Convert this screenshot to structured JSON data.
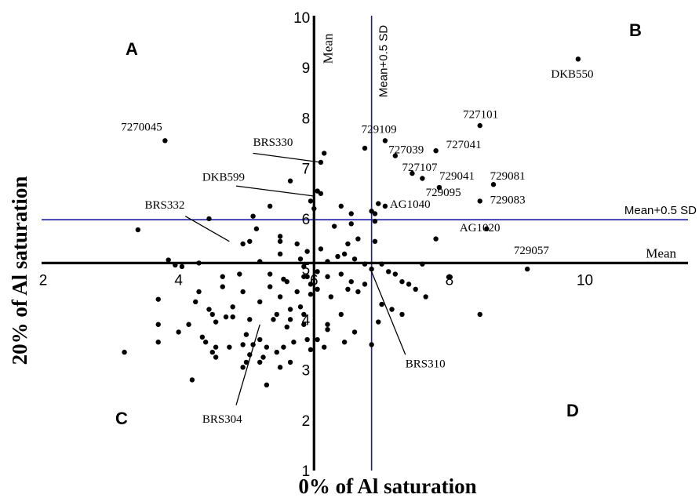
{
  "chart_data": {
    "type": "scatter",
    "xlabel": "0% of Al saturation",
    "ylabel": "20% of Al saturation",
    "xlim": [
      2,
      11.5
    ],
    "ylim": [
      1,
      10
    ],
    "x_ticks": [
      "2",
      "4",
      "6",
      "8",
      "10"
    ],
    "y_ticks": [
      "1",
      "2",
      "3",
      "4",
      "5",
      "6",
      "7",
      "8",
      "9",
      "10"
    ],
    "grid": false,
    "colors": {
      "points": "#000000",
      "sd_lines": "#1a1aa6",
      "mean_lines": "#000000"
    },
    "reference_lines": {
      "mean_x": {
        "value": 6.0,
        "label": "Mean"
      },
      "mean_y": {
        "value": 5.12,
        "label": "Mean"
      },
      "sd_x": {
        "value": 6.85,
        "label": "Mean+0.5 SD"
      },
      "sd_y": {
        "value": 5.98,
        "label": "Mean+0.5 SD"
      }
    },
    "quadrants": [
      "A",
      "B",
      "C",
      "D"
    ],
    "points": [
      [
        9.9,
        9.17
      ],
      [
        3.8,
        7.55
      ],
      [
        8.45,
        7.85
      ],
      [
        6.75,
        7.4
      ],
      [
        7.05,
        7.55
      ],
      [
        7.8,
        7.35
      ],
      [
        7.2,
        7.25
      ],
      [
        6.15,
        7.3
      ],
      [
        6.1,
        7.12
      ],
      [
        5.65,
        6.75
      ],
      [
        7.45,
        6.9
      ],
      [
        7.6,
        6.8
      ],
      [
        7.85,
        6.62
      ],
      [
        8.65,
        6.68
      ],
      [
        8.45,
        6.35
      ],
      [
        6.05,
        6.55
      ],
      [
        6.1,
        6.5
      ],
      [
        5.95,
        6.35
      ],
      [
        6.0,
        6.2
      ],
      [
        7.05,
        6.25
      ],
      [
        6.95,
        6.3
      ],
      [
        6.9,
        6.1
      ],
      [
        6.85,
        6.15
      ],
      [
        5.1,
        6.05
      ],
      [
        5.35,
        6.25
      ],
      [
        4.45,
        6.0
      ],
      [
        3.4,
        5.78
      ],
      [
        5.05,
        5.55
      ],
      [
        4.95,
        5.5
      ],
      [
        5.15,
        5.8
      ],
      [
        5.5,
        5.65
      ],
      [
        5.5,
        5.55
      ],
      [
        5.75,
        5.5
      ],
      [
        6.3,
        5.85
      ],
      [
        6.4,
        6.25
      ],
      [
        6.55,
        6.1
      ],
      [
        6.55,
        5.9
      ],
      [
        6.65,
        5.6
      ],
      [
        6.5,
        5.5
      ],
      [
        6.9,
        5.55
      ],
      [
        6.9,
        5.95
      ],
      [
        7.8,
        5.6
      ],
      [
        8.55,
        5.8
      ],
      [
        9.15,
        5.0
      ],
      [
        3.85,
        5.18
      ],
      [
        3.95,
        5.08
      ],
      [
        4.05,
        5.05
      ],
      [
        4.3,
        5.12
      ],
      [
        5.2,
        5.15
      ],
      [
        5.5,
        5.3
      ],
      [
        5.8,
        5.2
      ],
      [
        5.9,
        5.35
      ],
      [
        6.1,
        5.4
      ],
      [
        6.2,
        5.15
      ],
      [
        6.35,
        5.25
      ],
      [
        6.45,
        5.3
      ],
      [
        6.6,
        5.2
      ],
      [
        6.75,
        5.1
      ],
      [
        6.85,
        5.0
      ],
      [
        7.0,
        5.1
      ],
      [
        7.6,
        5.1
      ],
      [
        8.0,
        4.85
      ],
      [
        5.85,
        5.05
      ],
      [
        5.9,
        4.85
      ],
      [
        6.05,
        4.95
      ],
      [
        6.2,
        4.85
      ],
      [
        6.4,
        4.9
      ],
      [
        6.55,
        4.75
      ],
      [
        6.75,
        4.7
      ],
      [
        7.1,
        4.95
      ],
      [
        7.2,
        4.9
      ],
      [
        7.3,
        4.75
      ],
      [
        7.4,
        4.7
      ],
      [
        7.5,
        4.6
      ],
      [
        7.65,
        4.45
      ],
      [
        8.45,
        4.1
      ],
      [
        6.05,
        4.6
      ],
      [
        6.25,
        4.45
      ],
      [
        6.5,
        4.6
      ],
      [
        6.65,
        4.55
      ],
      [
        7.0,
        4.3
      ],
      [
        7.15,
        4.2
      ],
      [
        7.3,
        4.1
      ],
      [
        6.95,
        3.95
      ],
      [
        6.4,
        4.1
      ],
      [
        6.2,
        3.9
      ],
      [
        6.2,
        3.8
      ],
      [
        6.6,
        3.75
      ],
      [
        6.85,
        3.5
      ],
      [
        4.65,
        4.85
      ],
      [
        4.9,
        4.9
      ],
      [
        5.35,
        4.9
      ],
      [
        5.55,
        4.8
      ],
      [
        5.85,
        4.85
      ],
      [
        5.95,
        4.7
      ],
      [
        5.6,
        4.75
      ],
      [
        5.35,
        4.65
      ],
      [
        5.75,
        4.55
      ],
      [
        4.95,
        4.55
      ],
      [
        4.65,
        4.65
      ],
      [
        4.3,
        4.55
      ],
      [
        3.7,
        4.4
      ],
      [
        4.25,
        4.35
      ],
      [
        4.8,
        4.25
      ],
      [
        5.2,
        4.35
      ],
      [
        5.5,
        4.45
      ],
      [
        5.95,
        4.5
      ],
      [
        5.8,
        4.25
      ],
      [
        5.65,
        4.2
      ],
      [
        5.45,
        4.1
      ],
      [
        4.45,
        4.2
      ],
      [
        4.5,
        4.1
      ],
      [
        4.7,
        4.05
      ],
      [
        4.8,
        4.05
      ],
      [
        5.05,
        4.0
      ],
      [
        5.4,
        4.0
      ],
      [
        5.65,
        4.0
      ],
      [
        5.85,
        4.1
      ],
      [
        5.85,
        3.9
      ],
      [
        5.6,
        3.85
      ],
      [
        4.15,
        3.9
      ],
      [
        3.7,
        3.9
      ],
      [
        4.55,
        3.95
      ],
      [
        4.35,
        3.65
      ],
      [
        4.0,
        3.75
      ],
      [
        5.0,
        3.7
      ],
      [
        5.2,
        3.6
      ],
      [
        5.7,
        3.55
      ],
      [
        5.9,
        3.6
      ],
      [
        6.05,
        3.6
      ],
      [
        6.45,
        3.55
      ],
      [
        3.7,
        3.55
      ],
      [
        4.4,
        3.55
      ],
      [
        4.55,
        3.45
      ],
      [
        4.75,
        3.45
      ],
      [
        4.95,
        3.5
      ],
      [
        5.1,
        3.5
      ],
      [
        5.3,
        3.45
      ],
      [
        5.55,
        3.45
      ],
      [
        5.95,
        3.4
      ],
      [
        6.15,
        3.45
      ],
      [
        3.2,
        3.35
      ],
      [
        4.5,
        3.35
      ],
      [
        4.55,
        3.25
      ],
      [
        5.0,
        3.15
      ],
      [
        5.25,
        3.25
      ],
      [
        5.45,
        3.35
      ],
      [
        5.65,
        3.15
      ],
      [
        5.5,
        3.05
      ],
      [
        5.2,
        3.15
      ],
      [
        4.95,
        3.05
      ],
      [
        4.2,
        2.8
      ],
      [
        5.3,
        2.7
      ],
      [
        5.05,
        3.3
      ]
    ],
    "labels": [
      {
        "text": "DKB550",
        "x": 9.5,
        "y": 8.8
      },
      {
        "text": "7270045",
        "x": 3.15,
        "y": 7.75
      },
      {
        "text": "727101",
        "x": 8.2,
        "y": 8.0
      },
      {
        "text": "729109",
        "x": 6.7,
        "y": 7.7
      },
      {
        "text": "BRS330",
        "x": 5.1,
        "y": 7.45
      },
      {
        "text": "727039",
        "x": 7.1,
        "y": 7.3
      },
      {
        "text": "727041",
        "x": 7.95,
        "y": 7.4
      },
      {
        "text": "727107",
        "x": 7.3,
        "y": 6.95
      },
      {
        "text": "729041",
        "x": 7.85,
        "y": 6.78
      },
      {
        "text": "729081",
        "x": 8.6,
        "y": 6.78
      },
      {
        "text": "DKB599",
        "x": 4.35,
        "y": 6.75
      },
      {
        "text": "729095",
        "x": 7.65,
        "y": 6.45
      },
      {
        "text": "729083",
        "x": 8.6,
        "y": 6.3
      },
      {
        "text": "BRS332",
        "x": 3.5,
        "y": 6.2
      },
      {
        "text": "AG1040",
        "x": 7.12,
        "y": 6.22
      },
      {
        "text": "AG1020",
        "x": 8.15,
        "y": 5.75
      },
      {
        "text": "729057",
        "x": 8.95,
        "y": 5.3
      },
      {
        "text": "BRS310",
        "x": 7.35,
        "y": 3.05
      },
      {
        "text": "BRS304",
        "x": 4.35,
        "y": 1.95
      }
    ],
    "leaders": [
      {
        "from": [
          5.1,
          7.3
        ],
        "to": [
          6.1,
          7.12
        ]
      },
      {
        "from": [
          4.85,
          6.65
        ],
        "to": [
          6.0,
          6.45
        ]
      },
      {
        "from": [
          4.1,
          6.05
        ],
        "to": [
          4.75,
          5.55
        ]
      },
      {
        "from": [
          7.35,
          3.3
        ],
        "to": [
          6.85,
          4.95
        ]
      },
      {
        "from": [
          4.85,
          2.3
        ],
        "to": [
          5.2,
          3.9
        ]
      }
    ]
  }
}
